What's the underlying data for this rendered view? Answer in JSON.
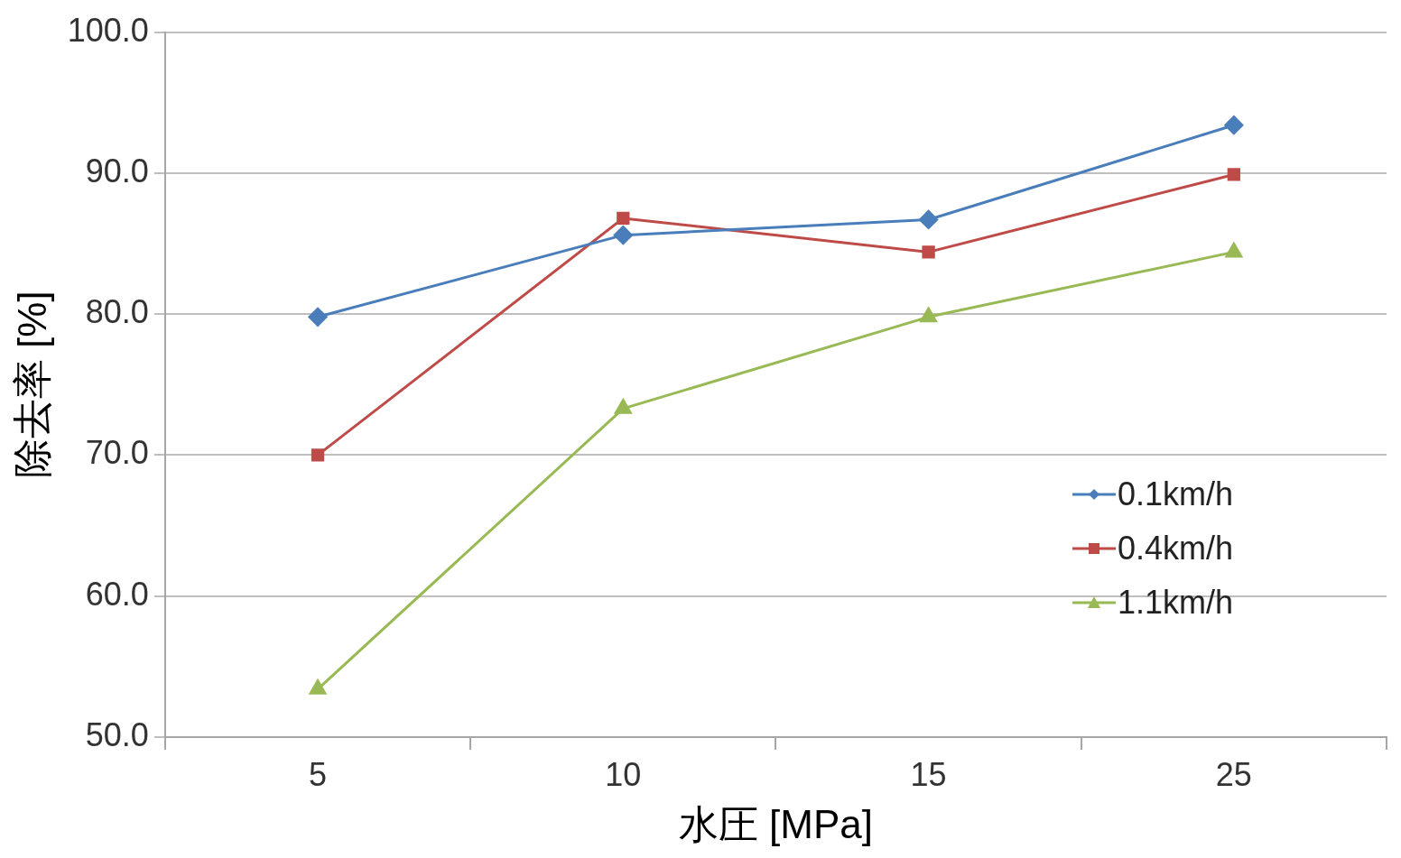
{
  "chart_data": {
    "type": "line",
    "xlabel": "水圧 [MPa]",
    "ylabel": "除去率 [%]",
    "categories": [
      "5",
      "10",
      "15",
      "25"
    ],
    "series": [
      {
        "name": "0.1km/h",
        "color": "#4a7ebb",
        "marker": "diamond",
        "values": [
          79.8,
          85.6,
          86.7,
          93.4
        ]
      },
      {
        "name": "0.4km/h",
        "color": "#be4b48",
        "marker": "square",
        "values": [
          70.0,
          86.8,
          84.4,
          89.9
        ]
      },
      {
        "name": "1.1km/h",
        "color": "#98b954",
        "marker": "triangle",
        "values": [
          53.4,
          73.3,
          79.8,
          84.4
        ]
      }
    ],
    "ylim": [
      50,
      100
    ],
    "yticks": [
      {
        "value": 50,
        "label": "50.0"
      },
      {
        "value": 60,
        "label": "60.0"
      },
      {
        "value": 70,
        "label": "70.0"
      },
      {
        "value": 80,
        "label": "80.0"
      },
      {
        "value": 90,
        "label": "90.0"
      },
      {
        "value": 100,
        "label": "100.0"
      }
    ],
    "grid": "y",
    "legend": "right",
    "line_style": "solid"
  }
}
